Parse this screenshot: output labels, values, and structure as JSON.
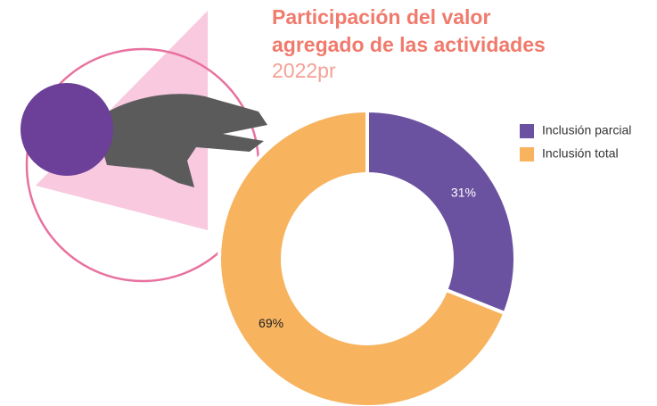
{
  "chart_data": {
    "type": "donut",
    "title": "Participación del valor agregado de las actividades",
    "subtitle": "2022pr",
    "categories": [
      "Inclusión parcial",
      "Inclusión total"
    ],
    "values": [
      31,
      69
    ],
    "value_labels": [
      "31%",
      "69%"
    ],
    "colors": [
      "#6b52a0",
      "#f7b35e"
    ],
    "label_colors": [
      "#ffffff",
      "#222222"
    ],
    "legend": "right"
  }
}
